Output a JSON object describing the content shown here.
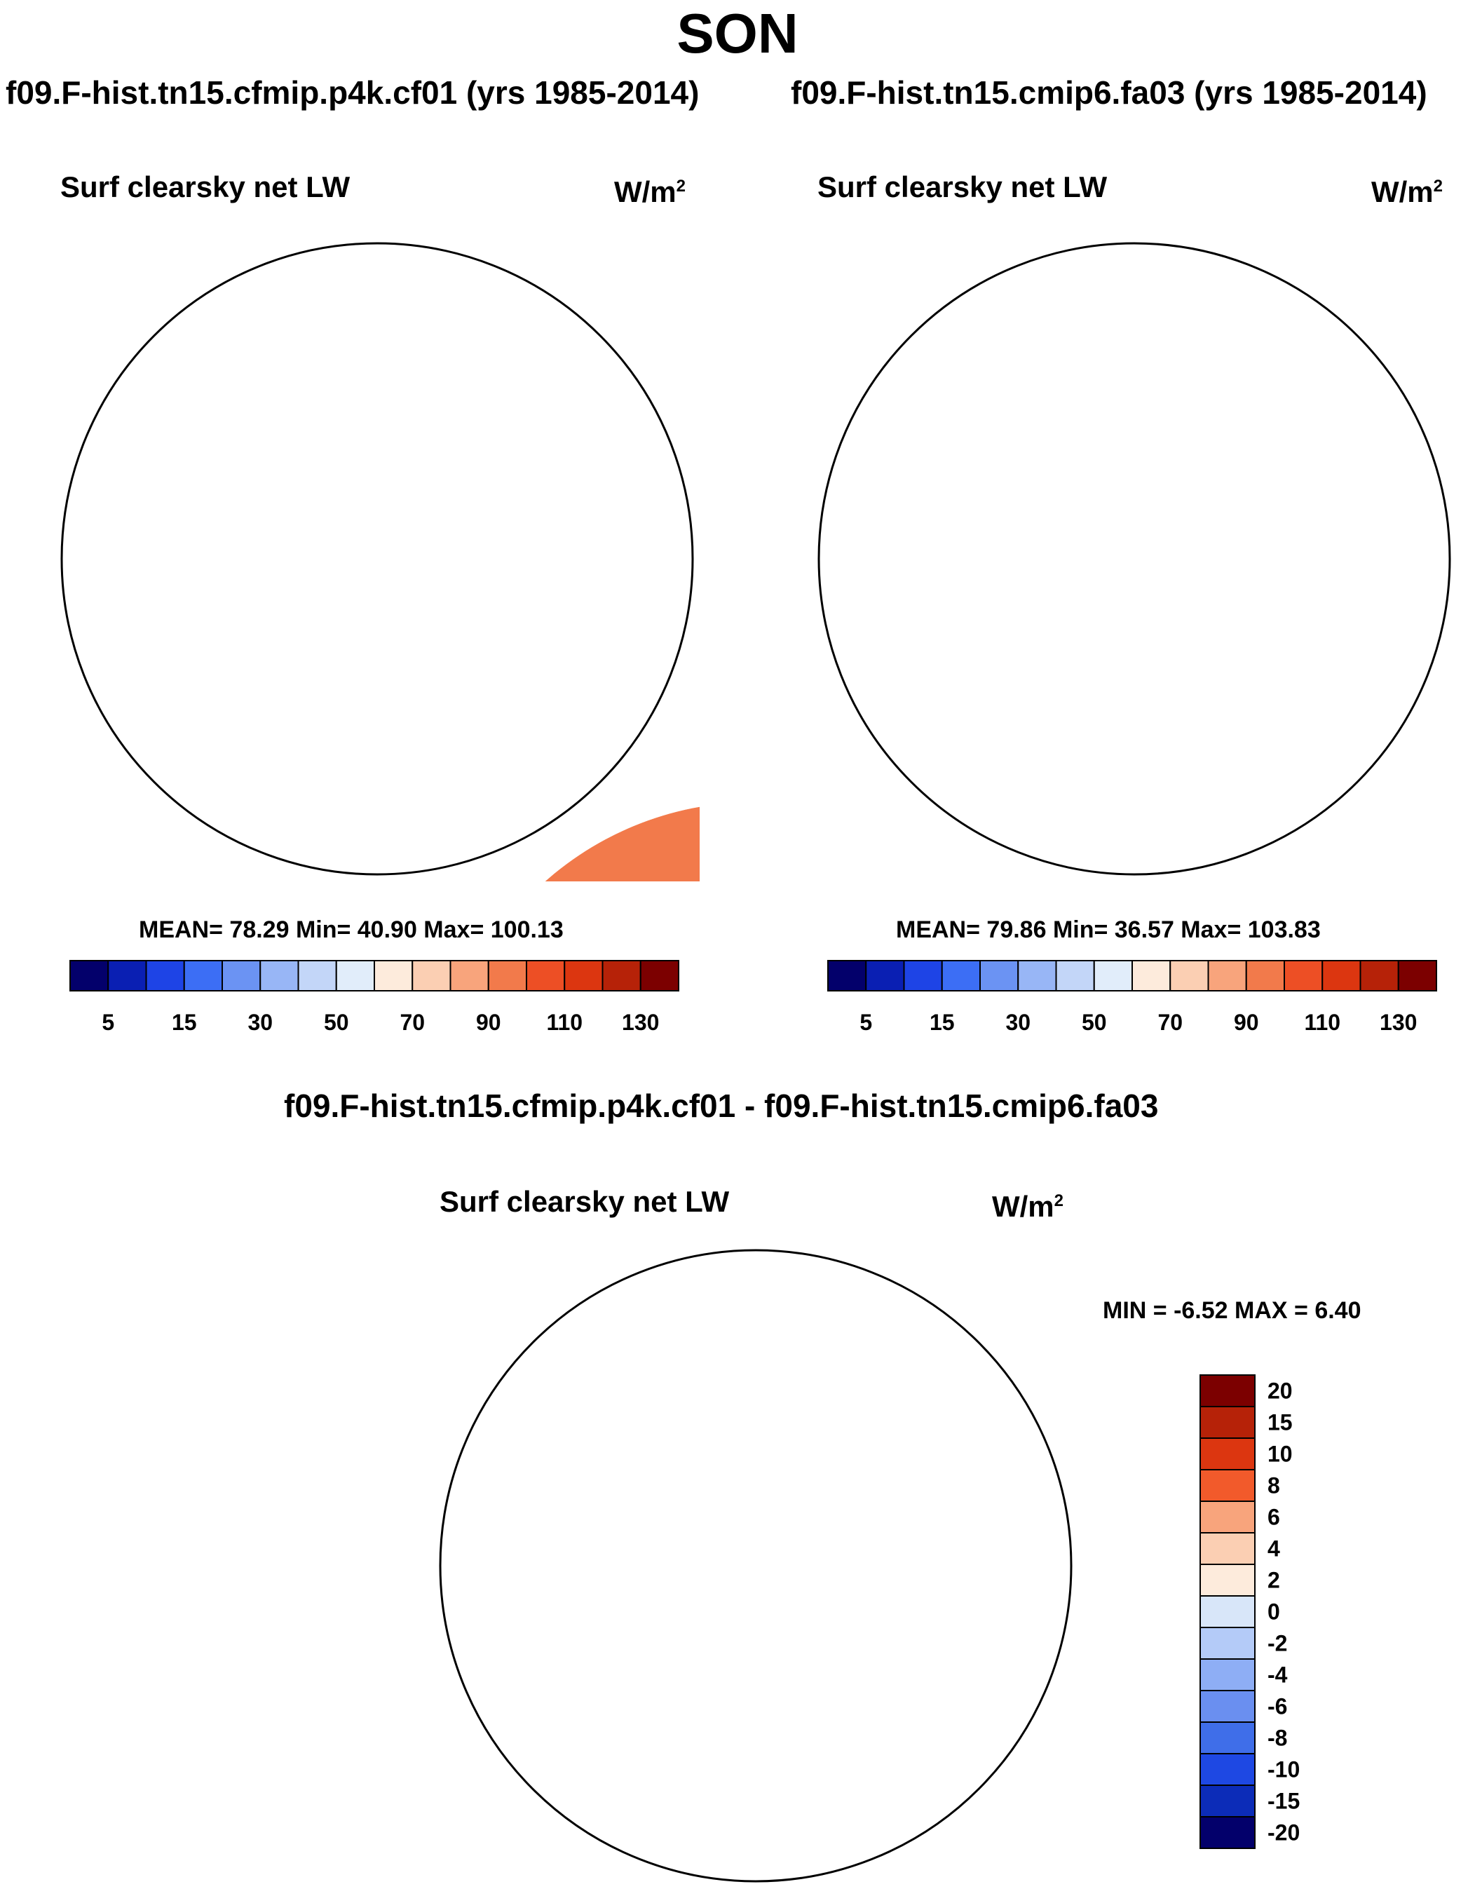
{
  "figure": {
    "title": "SON",
    "panels": [
      {
        "title": "f09.F-hist.tn15.cfmip.p4k.cf01 (yrs 1985-2014)",
        "variable": "Surf clearsky net LW",
        "units": "W/m",
        "units_exp": "2",
        "stats": "MEAN=  78.29  Min=  40.90  Max= 100.13"
      },
      {
        "title": "f09.F-hist.tn15.cmip6.fa03 (yrs 1985-2014)",
        "variable": "Surf clearsky net LW",
        "units": "W/m",
        "units_exp": "2",
        "stats": "MEAN=  79.86  Min=  36.57  Max= 103.83"
      }
    ],
    "diff": {
      "title": "f09.F-hist.tn15.cfmip.p4k.cf01 - f09.F-hist.tn15.cmip6.fa03",
      "variable": "Surf clearsky net LW",
      "units": "W/m",
      "units_exp": "2",
      "stats": "MIN =  -6.52 MAX =   6.40"
    }
  },
  "chart_data": [
    {
      "type": "map",
      "projection": "south-polar-stereographic",
      "panel": "f09.F-hist.tn15.cfmip.p4k.cf01",
      "field": "Surf clearsky net LW",
      "mean": 78.29,
      "min": 40.9,
      "max": 100.13,
      "colorbar": {
        "orientation": "horizontal",
        "tick_labels": [
          "5",
          "15",
          "30",
          "50",
          "70",
          "90",
          "110",
          "130"
        ],
        "colors": [
          "#03006b",
          "#0a1fb3",
          "#1e44e6",
          "#3c6ef5",
          "#6b93f3",
          "#98b6f6",
          "#c3d6f8",
          "#e1edfa",
          "#fdebdc",
          "#fbcfb3",
          "#f8a47c",
          "#f27a4b",
          "#ed4f25",
          "#dc3610",
          "#b62208",
          "#7c0000"
        ]
      }
    },
    {
      "type": "map",
      "projection": "south-polar-stereographic",
      "panel": "f09.F-hist.tn15.cmip6.fa03",
      "field": "Surf clearsky net LW",
      "mean": 79.86,
      "min": 36.57,
      "max": 103.83,
      "colorbar": {
        "orientation": "horizontal",
        "tick_labels": [
          "5",
          "15",
          "30",
          "50",
          "70",
          "90",
          "110",
          "130"
        ],
        "colors": [
          "#03006b",
          "#0a1fb3",
          "#1e44e6",
          "#3c6ef5",
          "#6b93f3",
          "#98b6f6",
          "#c3d6f8",
          "#e1edfa",
          "#fdebdc",
          "#fbcfb3",
          "#f8a47c",
          "#f27a4b",
          "#ed4f25",
          "#dc3610",
          "#b62208",
          "#7c0000"
        ]
      }
    },
    {
      "type": "map",
      "projection": "south-polar-stereographic",
      "panel": "difference",
      "field": "Surf clearsky net LW",
      "min": -6.52,
      "max": 6.4,
      "colorbar": {
        "orientation": "vertical",
        "tick_labels": [
          "20",
          "15",
          "10",
          "8",
          "6",
          "4",
          "2",
          "0",
          "-2",
          "-4",
          "-6",
          "-8",
          "-10",
          "-15",
          "-20"
        ],
        "colors": [
          "#7c0000",
          "#b62208",
          "#dc3610",
          "#f25a2b",
          "#f8a47c",
          "#fbcfb3",
          "#fdebdc",
          "#d8e6f9",
          "#b4cbf8",
          "#8eaef5",
          "#6a8ff0",
          "#3f6ee9",
          "#1e48e3",
          "#0c2cb8",
          "#03006b"
        ]
      }
    }
  ]
}
